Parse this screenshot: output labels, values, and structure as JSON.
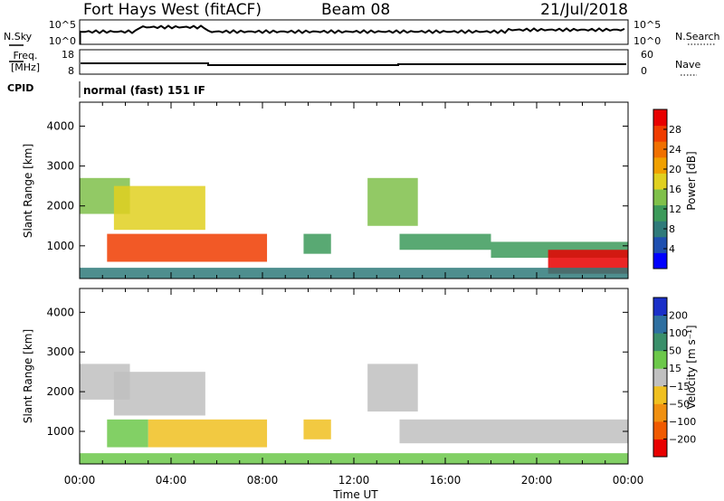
{
  "header": {
    "station": "Fort Hays West (fitACF)",
    "beam": "Beam 08",
    "date": "21/Jul/2018"
  },
  "params": {
    "nsky_label": "N.Sky",
    "nsky_tick_hi": "10^5",
    "nsky_tick_lo": "10^0",
    "nsearch_label": "N.Search",
    "nsearch_tick_hi": "10^5",
    "nsearch_tick_lo": "10^0",
    "freq_label_1": "Freq.",
    "freq_label_2": "[MHz]",
    "freq_tick_hi": "18",
    "freq_tick_lo": "8",
    "nave_label": "Nave",
    "nave_tick_hi": "60",
    "nave_tick_lo": "0",
    "cpid_label": "CPID",
    "cpid_value": "normal (fast) 151 IF"
  },
  "axes": {
    "xlabel": "Time UT",
    "ylabel": "Slant Range [km]",
    "xticks": [
      "00:00",
      "04:00",
      "08:00",
      "12:00",
      "16:00",
      "20:00",
      "00:00"
    ],
    "yticks": [
      "1000",
      "2000",
      "3000",
      "4000"
    ]
  },
  "power_scale": {
    "label": "Power [dB]",
    "ticks": [
      "4",
      "8",
      "12",
      "16",
      "20",
      "24",
      "28"
    ],
    "colors": [
      "#0000ff",
      "#1e4fb0",
      "#2f7a7a",
      "#3c9a5a",
      "#7fc04a",
      "#e0d020",
      "#f0a000",
      "#f07000",
      "#f03c00",
      "#e80000"
    ]
  },
  "velocity_scale": {
    "label": "Velocity [m s⁻¹]",
    "ticks": [
      "200",
      "100",
      "50",
      "15",
      "−15",
      "−50",
      "−100",
      "−200"
    ],
    "colors": [
      "#1a2fc8",
      "#2e6fa0",
      "#3a8f6a",
      "#6cc84a",
      "#c0c0c0",
      "#f0c020",
      "#f09010",
      "#f05a00",
      "#e80000"
    ]
  },
  "chart_data": [
    {
      "type": "heatmap",
      "title": "Power [dB]",
      "xlabel": "Time UT",
      "ylabel": "Slant Range [km]",
      "xlim": [
        "00:00",
        "24:00"
      ],
      "ylim": [
        180,
        4600
      ],
      "clim": [
        0,
        30
      ],
      "regions": [
        {
          "t0": 0.0,
          "t1": 2.2,
          "r0": 1800,
          "r1": 2700,
          "value": 14
        },
        {
          "t0": 1.5,
          "t1": 5.5,
          "r0": 1400,
          "r1": 2500,
          "value": 15
        },
        {
          "t0": 1.2,
          "t1": 8.2,
          "r0": 600,
          "r1": 1300,
          "value": 24
        },
        {
          "t0": 9.8,
          "t1": 11.0,
          "r0": 800,
          "r1": 1300,
          "value": 11
        },
        {
          "t0": 12.6,
          "t1": 14.8,
          "r0": 1500,
          "r1": 2700,
          "value": 12
        },
        {
          "t0": 14.0,
          "t1": 18.0,
          "r0": 900,
          "r1": 1300,
          "value": 10
        },
        {
          "t0": 18.0,
          "t1": 24.0,
          "r0": 700,
          "r1": 1100,
          "value": 11
        },
        {
          "t0": 20.5,
          "t1": 24.0,
          "r0": 300,
          "r1": 900,
          "value": 28
        },
        {
          "t0": 0.0,
          "t1": 24.0,
          "r0": 180,
          "r1": 450,
          "value": 8
        }
      ]
    },
    {
      "type": "heatmap",
      "title": "Velocity [m s⁻¹]",
      "xlabel": "Time UT",
      "ylabel": "Slant Range [km]",
      "xlim": [
        "00:00",
        "24:00"
      ],
      "ylim": [
        180,
        4600
      ],
      "clim": [
        -200,
        200
      ],
      "regions": [
        {
          "t0": 0.0,
          "t1": 2.2,
          "r0": 1800,
          "r1": 2700,
          "value": 0
        },
        {
          "t0": 1.5,
          "t1": 5.5,
          "r0": 1400,
          "r1": 2500,
          "value": 0
        },
        {
          "t0": 1.2,
          "t1": 3.0,
          "r0": 600,
          "r1": 1300,
          "value": 40
        },
        {
          "t0": 3.0,
          "t1": 8.2,
          "r0": 600,
          "r1": 1300,
          "value": -60
        },
        {
          "t0": 9.8,
          "t1": 11.0,
          "r0": 800,
          "r1": 1300,
          "value": -60
        },
        {
          "t0": 12.6,
          "t1": 14.8,
          "r0": 1500,
          "r1": 2700,
          "value": 0
        },
        {
          "t0": 14.0,
          "t1": 24.0,
          "r0": 700,
          "r1": 1300,
          "value": 0
        },
        {
          "t0": 0.0,
          "t1": 24.0,
          "r0": 180,
          "r1": 450,
          "value": 40
        }
      ]
    }
  ]
}
